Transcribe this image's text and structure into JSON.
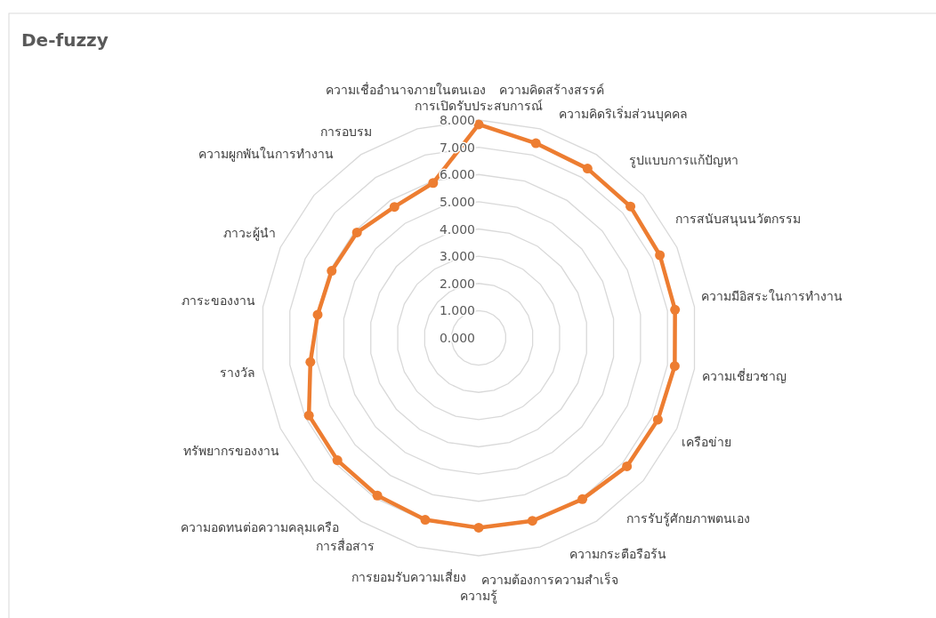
{
  "chart_data": {
    "type": "radar",
    "title": "De-fuzzy",
    "categories": [
      "การเปิดรับประสบการณ์",
      "ความคิดสร้างสรรค์",
      "ความคิดริเริ่มส่วนบุคคล",
      "รูปแบบการแก้ปัญหา",
      "การสนับสนุนนวัตกรรม",
      "ความมีอิสระในการทำงาน",
      "ความเชี่ยวชาญ",
      "เครือข่าย",
      "การรับรู้ศักยภาพตนเอง",
      "ความกระตือรือร้น",
      "ความต้องการความสำเร็จ",
      "ความรู้",
      "การยอมรับความเสี่ยง",
      "การสื่อสาร",
      "ความอดทนต่อความคลุมเครือ",
      "ทรัพยากรของงาน",
      "รางวัล",
      "ภาระของงาน",
      "ภาวะผู้นำ",
      "ความผูกพันในการทำงาน",
      "การอบรม",
      "ความเชื่ออำนาจภายในตนเอง"
    ],
    "series": [
      {
        "color": "#ed7d31",
        "values": [
          7.84,
          7.45,
          7.39,
          7.37,
          7.31,
          7.28,
          7.27,
          7.23,
          7.2,
          7.04,
          7.0,
          6.97,
          6.96,
          6.88,
          6.86,
          6.85,
          6.24,
          5.97,
          5.93,
          5.91,
          5.72,
          5.93
        ]
      }
    ],
    "ylim": [
      0,
      8
    ],
    "yticks": [
      {
        "value": 0,
        "label": "0.000"
      },
      {
        "value": 1,
        "label": "1.000"
      },
      {
        "value": 2,
        "label": "2.000"
      },
      {
        "value": 3,
        "label": "3.000"
      },
      {
        "value": 4,
        "label": "4.000"
      },
      {
        "value": 5,
        "label": "5.000"
      },
      {
        "value": 6,
        "label": "6.000"
      },
      {
        "value": 7,
        "label": "7.000"
      },
      {
        "value": 8,
        "label": "8.000"
      }
    ],
    "grid": true,
    "marker": "circle"
  }
}
